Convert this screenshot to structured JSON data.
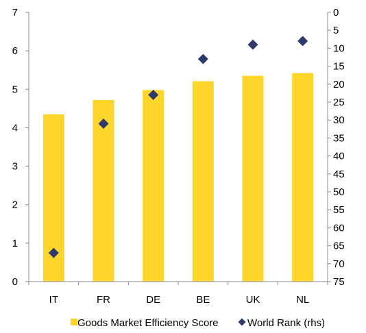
{
  "chart_data": {
    "type": "bar",
    "categories": [
      "IT",
      "FR",
      "DE",
      "BE",
      "UK",
      "NL"
    ],
    "series": [
      {
        "name": "Goods Market Efficiency Score",
        "kind": "bar",
        "axis": "left",
        "color": "#FDD52B",
        "values": [
          4.35,
          4.72,
          4.98,
          5.21,
          5.35,
          5.42
        ]
      },
      {
        "name": "World Rank (rhs)",
        "kind": "scatter",
        "marker": "diamond",
        "axis": "right",
        "color": "#2E3A6E",
        "values": [
          67,
          31,
          23,
          13,
          9,
          8
        ]
      }
    ],
    "y_left": {
      "ylim": [
        0,
        7
      ],
      "ticks": [
        "0",
        "1",
        "2",
        "3",
        "4",
        "5",
        "6",
        "7"
      ]
    },
    "y_right": {
      "ylim": [
        75,
        0
      ],
      "reversed": true,
      "ticks": [
        "0",
        "5",
        "10",
        "15",
        "20",
        "25",
        "30",
        "35",
        "40",
        "45",
        "50",
        "55",
        "60",
        "65",
        "70",
        "75"
      ]
    },
    "grid": false,
    "legend_position": "bottom"
  }
}
